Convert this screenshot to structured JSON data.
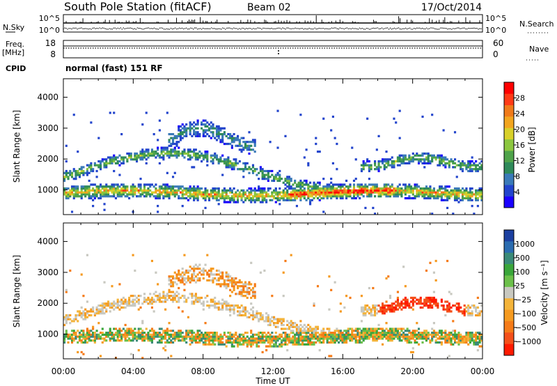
{
  "header": {
    "station": "South Pole Station (fitACF)",
    "beam": "Beam 02",
    "date": "17/Oct/2014"
  },
  "noise_panel": {
    "left_label": "N.Sky",
    "right_label": "N.Search",
    "y_ticks_left": [
      "10^5",
      "10^0"
    ],
    "y_ticks_right": [
      "10^5",
      "10^0"
    ]
  },
  "freq_panel": {
    "left_label": "Freq.",
    "left_unit": "[MHz]",
    "right_label": "Nave",
    "y_ticks_left": [
      "18",
      "8"
    ],
    "y_ticks_right": [
      "60",
      "0"
    ],
    "cpid_label": "CPID",
    "cpid_value": "normal (fast) 151 RF"
  },
  "chart_data": [
    {
      "type": "heatmap",
      "quantity": "Power",
      "xlabel": "",
      "ylabel": "Slant Range [km]",
      "xlim_hours": [
        0,
        24
      ],
      "ylim_km": [
        200,
        4600
      ],
      "yticks": [
        1000,
        2000,
        3000,
        4000
      ],
      "colorbar": {
        "label": "Power [dB]",
        "ticks": [
          "4",
          "8",
          "12",
          "16",
          "20",
          "24",
          "28"
        ],
        "colors": [
          "#1a00ff",
          "#2244cc",
          "#3a7ab8",
          "#2f8a5a",
          "#4fa34a",
          "#8cc63f",
          "#d8d02a",
          "#f2a51f",
          "#f07a1a",
          "#ff3a16",
          "#ff0000"
        ]
      }
    },
    {
      "type": "heatmap",
      "quantity": "Velocity",
      "xlabel": "Time UT",
      "ylabel": "Slant Range [km]",
      "xlim_hours": [
        0,
        24
      ],
      "ylim_km": [
        200,
        4600
      ],
      "yticks": [
        1000,
        2000,
        3000,
        4000
      ],
      "xticks": [
        "00:00",
        "04:00",
        "08:00",
        "12:00",
        "16:00",
        "20:00",
        "00:00"
      ],
      "colorbar": {
        "label": "Velocity [m s⁻¹]",
        "ticks": [
          "1000",
          "500",
          "100",
          "25",
          "−25",
          "−100",
          "−500",
          "−1000"
        ],
        "colors": [
          "#1b3fa0",
          "#2b6cb0",
          "#3a8a78",
          "#3aa63a",
          "#6cc04a",
          "#c8c8c0",
          "#f4b43a",
          "#f59a20",
          "#f57b18",
          "#f4501a",
          "#ff1a00"
        ]
      }
    }
  ]
}
